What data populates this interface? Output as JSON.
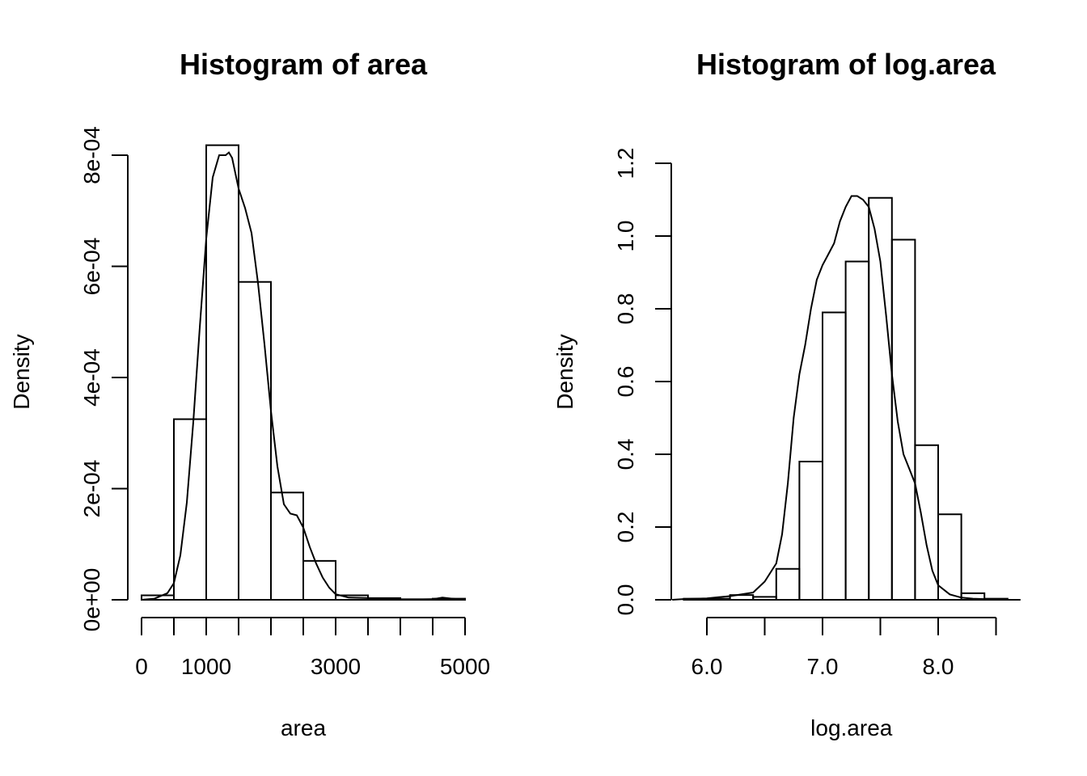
{
  "chart_data": [
    {
      "type": "bar",
      "title": "Histogram of area",
      "xlabel": "area",
      "ylabel": "Density",
      "breaks": [
        0,
        500,
        1000,
        1500,
        2000,
        2500,
        3000,
        3500,
        4000,
        4500,
        5000
      ],
      "values": [
        8e-06,
        0.000325,
        0.000818,
        0.000572,
        0.000193,
        7e-05,
        8e-06,
        3e-06,
        1e-06,
        2e-06
      ],
      "xlim": [
        0,
        5000
      ],
      "ylim": [
        0,
        0.00082
      ],
      "xticks": [
        0,
        500,
        1000,
        1500,
        2000,
        2500,
        3000,
        3500,
        4000,
        4500,
        5000
      ],
      "xtick_labels": [
        {
          "value": 0,
          "label": "0"
        },
        {
          "value": 1000,
          "label": "1000"
        },
        {
          "value": 3000,
          "label": "3000"
        },
        {
          "value": 5000,
          "label": "5000"
        }
      ],
      "yticks": [
        {
          "value": 0,
          "label": "0e+00"
        },
        {
          "value": 0.0002,
          "label": "2e-04"
        },
        {
          "value": 0.0004,
          "label": "4e-04"
        },
        {
          "value": 0.0006,
          "label": "6e-04"
        },
        {
          "value": 0.0008,
          "label": "8e-04"
        }
      ],
      "density_curve": [
        [
          0,
          0.0
        ],
        [
          200,
          2e-06
        ],
        [
          400,
          1.2e-05
        ],
        [
          500,
          3e-05
        ],
        [
          600,
          8e-05
        ],
        [
          700,
          0.000175
        ],
        [
          800,
          0.00032
        ],
        [
          900,
          0.00049
        ],
        [
          1000,
          0.00065
        ],
        [
          1100,
          0.00076
        ],
        [
          1200,
          0.0008
        ],
        [
          1300,
          0.0008
        ],
        [
          1350,
          0.000805
        ],
        [
          1400,
          0.000795
        ],
        [
          1500,
          0.00074
        ],
        [
          1600,
          0.000705
        ],
        [
          1700,
          0.00066
        ],
        [
          1800,
          0.00057
        ],
        [
          1900,
          0.00046
        ],
        [
          2000,
          0.00034
        ],
        [
          2100,
          0.00024
        ],
        [
          2200,
          0.000172
        ],
        [
          2300,
          0.000155
        ],
        [
          2400,
          0.000152
        ],
        [
          2500,
          0.00013
        ],
        [
          2600,
          9.5e-05
        ],
        [
          2700,
          6.5e-05
        ],
        [
          2800,
          4e-05
        ],
        [
          2900,
          2.2e-05
        ],
        [
          3000,
          1e-05
        ],
        [
          3200,
          4e-06
        ],
        [
          3500,
          3e-06
        ],
        [
          3800,
          1e-06
        ],
        [
          4200,
          5e-07
        ],
        [
          4500,
          1e-06
        ],
        [
          4650,
          4e-06
        ],
        [
          4800,
          2e-06
        ],
        [
          5000,
          0.0
        ]
      ]
    },
    {
      "type": "bar",
      "title": "Histogram of log.area",
      "xlabel": "log.area",
      "ylabel": "Density",
      "breaks": [
        5.8,
        6.0,
        6.2,
        6.4,
        6.6,
        6.8,
        7.0,
        7.2,
        7.4,
        7.6,
        7.8,
        8.0,
        8.2,
        8.4,
        8.6
      ],
      "values": [
        0.003,
        0.003,
        0.013,
        0.008,
        0.085,
        0.38,
        0.79,
        0.93,
        1.105,
        0.99,
        0.425,
        0.235,
        0.018,
        0.003
      ],
      "xlim": [
        6.0,
        8.5
      ],
      "ylim": [
        0,
        1.2
      ],
      "xticks": [
        6.0,
        6.5,
        7.0,
        7.5,
        8.0,
        8.5
      ],
      "xtick_labels": [
        {
          "value": 6.0,
          "label": "6.0"
        },
        {
          "value": 7.0,
          "label": "7.0"
        },
        {
          "value": 8.0,
          "label": "8.0"
        }
      ],
      "yticks": [
        {
          "value": 0.0,
          "label": "0.0"
        },
        {
          "value": 0.2,
          "label": "0.2"
        },
        {
          "value": 0.4,
          "label": "0.4"
        },
        {
          "value": 0.6,
          "label": "0.6"
        },
        {
          "value": 0.8,
          "label": "0.8"
        },
        {
          "value": 1.0,
          "label": "1.0"
        },
        {
          "value": 1.2,
          "label": "1.2"
        }
      ],
      "density_curve": [
        [
          5.7,
          0.0
        ],
        [
          5.8,
          0.002
        ],
        [
          6.0,
          0.004
        ],
        [
          6.2,
          0.01
        ],
        [
          6.3,
          0.015
        ],
        [
          6.4,
          0.02
        ],
        [
          6.5,
          0.05
        ],
        [
          6.6,
          0.1
        ],
        [
          6.65,
          0.18
        ],
        [
          6.7,
          0.32
        ],
        [
          6.75,
          0.5
        ],
        [
          6.8,
          0.62
        ],
        [
          6.85,
          0.7
        ],
        [
          6.9,
          0.8
        ],
        [
          6.95,
          0.88
        ],
        [
          7.0,
          0.92
        ],
        [
          7.05,
          0.95
        ],
        [
          7.1,
          0.98
        ],
        [
          7.15,
          1.04
        ],
        [
          7.2,
          1.08
        ],
        [
          7.25,
          1.11
        ],
        [
          7.3,
          1.11
        ],
        [
          7.35,
          1.1
        ],
        [
          7.4,
          1.08
        ],
        [
          7.45,
          1.02
        ],
        [
          7.5,
          0.93
        ],
        [
          7.55,
          0.78
        ],
        [
          7.6,
          0.62
        ],
        [
          7.65,
          0.49
        ],
        [
          7.7,
          0.4
        ],
        [
          7.75,
          0.36
        ],
        [
          7.8,
          0.32
        ],
        [
          7.85,
          0.24
        ],
        [
          7.9,
          0.15
        ],
        [
          7.95,
          0.08
        ],
        [
          8.0,
          0.04
        ],
        [
          8.1,
          0.015
        ],
        [
          8.2,
          0.006
        ],
        [
          8.3,
          0.003
        ],
        [
          8.4,
          0.002
        ],
        [
          8.6,
          0.0
        ]
      ]
    }
  ]
}
